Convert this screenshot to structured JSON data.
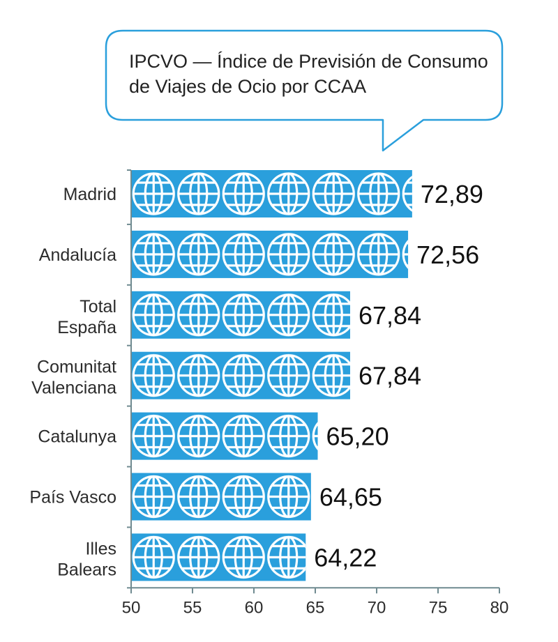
{
  "chart_data": {
    "type": "bar",
    "orientation": "horizontal",
    "title": "IPCVO — Índice de Previsión de Consumo de Viajes de Ocio por CCAA",
    "title_lines": [
      "IPCVO — Índice de Previsión de Consumo",
      "de Viajes de Ocio por CCAA"
    ],
    "categories": [
      "Madrid",
      "Andalucía",
      "Total España",
      "Comunitat Valenciana",
      "Catalunya",
      "País Vasco",
      "Illes Balears"
    ],
    "category_lines": [
      [
        "Madrid"
      ],
      [
        "Andalucía"
      ],
      [
        "Total",
        "España"
      ],
      [
        "Comunitat",
        "Valenciana"
      ],
      [
        "Catalunya"
      ],
      [
        "País Vasco"
      ],
      [
        "Illes",
        "Balears"
      ]
    ],
    "values": [
      72.89,
      72.56,
      67.84,
      67.84,
      65.2,
      64.65,
      64.22
    ],
    "value_labels": [
      "72,89",
      "72,56",
      "67,84",
      "67,84",
      "65,20",
      "64,65",
      "64,22"
    ],
    "xlim": [
      50,
      80
    ],
    "xticks": [
      50,
      55,
      60,
      65,
      70,
      75,
      80
    ],
    "xlabel": "",
    "ylabel": "",
    "grid": false,
    "bar_pattern": "globe-icon",
    "colors": {
      "bar": "#2a9fdc",
      "axis": "#6f8a90",
      "bubble_border": "#2a9fdc"
    }
  }
}
